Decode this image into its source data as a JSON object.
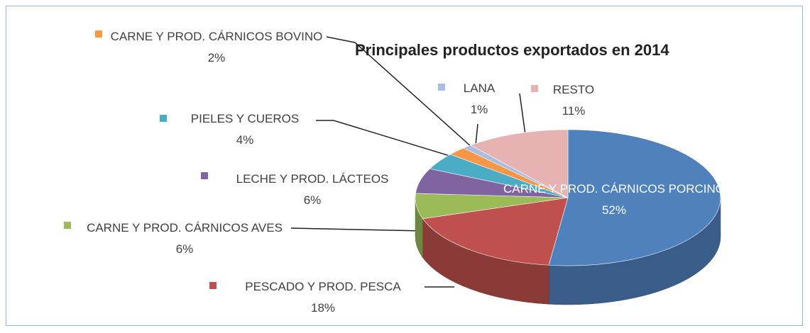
{
  "chart_data": {
    "type": "pie",
    "title": "Principales productos exportados en 2014",
    "categories": [
      "CARNE Y PROD. CÁRNICOS PORCINO",
      "PESCADO Y PROD. PESCA",
      "CARNE Y PROD. CÁRNICOS AVES",
      "LECHE Y PROD. LÁCTEOS",
      "PIELES Y CUEROS",
      "CARNE Y PROD. CÁRNICOS BOVINO",
      "LANA",
      "RESTO"
    ],
    "values": [
      52,
      18,
      6,
      6,
      4,
      2,
      1,
      11
    ],
    "value_labels": [
      "52%",
      "18%",
      "6%",
      "6%",
      "4%",
      "2%",
      "1%",
      "11%"
    ],
    "colors": [
      "#4f81bd",
      "#c0504d",
      "#9bbb59",
      "#8064a2",
      "#4bacc6",
      "#f79646",
      "#a9bde0",
      "#e6b3b2"
    ]
  }
}
